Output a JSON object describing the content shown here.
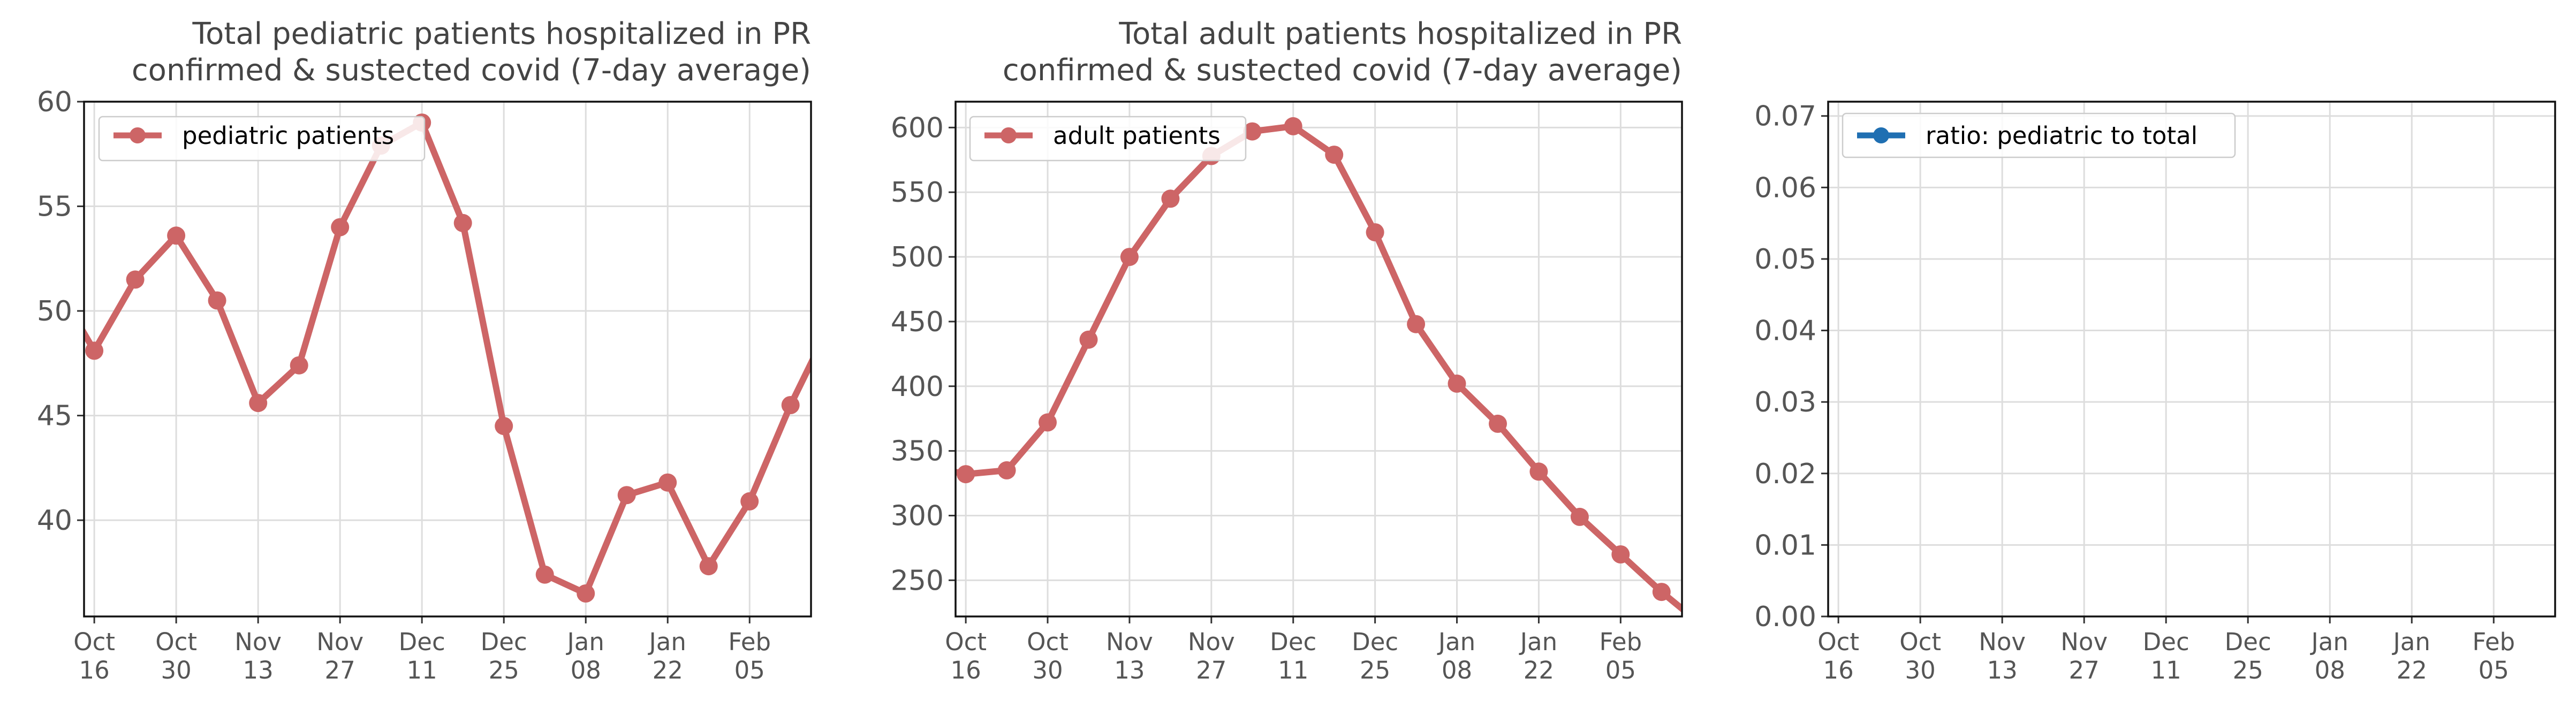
{
  "chart_data": [
    {
      "type": "line",
      "title": [
        "Total pediatric patients hospitalized in PR",
        "confirmed & sustected covid (7-day average)"
      ],
      "xlabel": "",
      "ylabel": "",
      "x_ticks": [
        [
          "Oct",
          "16"
        ],
        [
          "Oct",
          "30"
        ],
        [
          "Nov",
          "13"
        ],
        [
          "Nov",
          "27"
        ],
        [
          "Dec",
          "11"
        ],
        [
          "Dec",
          "25"
        ],
        [
          "Jan",
          "08"
        ],
        [
          "Jan",
          "22"
        ],
        [
          "Feb",
          "05"
        ]
      ],
      "x": [
        -0.3,
        0,
        1,
        2,
        3,
        4,
        5,
        6,
        7,
        8,
        9,
        10,
        11,
        12,
        13,
        14,
        15,
        16,
        17,
        18
      ],
      "markers_from_index": 1,
      "xlim": [
        -0.25,
        17.5
      ],
      "ylim": [
        35.4,
        60
      ],
      "yticks": [
        40,
        45,
        50,
        55,
        60
      ],
      "ytick_decimals": 0,
      "grid": true,
      "legend_position": "top-left",
      "series": [
        {
          "name": "pediatric patients",
          "color": "#cd6566",
          "values": [
            49.1,
            48.1,
            51.5,
            53.6,
            50.5,
            45.6,
            47.4,
            54.0,
            57.9,
            59.0,
            54.2,
            44.5,
            37.4,
            36.5,
            41.2,
            41.8,
            37.8,
            40.9,
            45.5,
            49.5
          ]
        }
      ]
    },
    {
      "type": "line",
      "title": [
        "Total adult patients hospitalized in PR",
        "confirmed & sustected covid (7-day average)"
      ],
      "xlabel": "",
      "ylabel": "",
      "x_ticks": [
        [
          "Oct",
          "16"
        ],
        [
          "Oct",
          "30"
        ],
        [
          "Nov",
          "13"
        ],
        [
          "Nov",
          "27"
        ],
        [
          "Dec",
          "11"
        ],
        [
          "Dec",
          "25"
        ],
        [
          "Jan",
          "08"
        ],
        [
          "Jan",
          "22"
        ],
        [
          "Feb",
          "05"
        ]
      ],
      "x": [
        -0.3,
        0,
        1,
        2,
        3,
        4,
        5,
        6,
        7,
        8,
        9,
        10,
        11,
        12,
        13,
        14,
        15,
        16,
        17,
        18
      ],
      "markers_from_index": 1,
      "xlim": [
        -0.25,
        17.5
      ],
      "ylim": [
        222,
        620
      ],
      "yticks": [
        250,
        300,
        350,
        400,
        450,
        500,
        550,
        600
      ],
      "ytick_decimals": 0,
      "grid": true,
      "legend_position": "top-left",
      "series": [
        {
          "name": "adult patients",
          "color": "#cd6566",
          "values": [
            334,
            332,
            335,
            372,
            436,
            500,
            545,
            578,
            597,
            601,
            579,
            519,
            448,
            402,
            371,
            334,
            299,
            270,
            241,
            215
          ]
        }
      ]
    },
    {
      "type": "line",
      "title": [],
      "xlabel": "",
      "ylabel": "",
      "x_ticks": [
        [
          "Oct",
          "16"
        ],
        [
          "Oct",
          "30"
        ],
        [
          "Nov",
          "13"
        ],
        [
          "Nov",
          "27"
        ],
        [
          "Dec",
          "11"
        ],
        [
          "Dec",
          "25"
        ],
        [
          "Jan",
          "08"
        ],
        [
          "Jan",
          "22"
        ],
        [
          "Feb",
          "05"
        ]
      ],
      "x": [],
      "markers_from_index": 0,
      "xlim": [
        -0.25,
        17.5
      ],
      "ylim": [
        0,
        0.072
      ],
      "yticks": [
        0,
        0.01,
        0.02,
        0.03,
        0.04,
        0.05,
        0.06,
        0.07
      ],
      "ytick_decimals": 2,
      "grid": true,
      "legend_position": "top-left",
      "series": [
        {
          "name": "ratio: pediatric to total",
          "color": "#1f6fb2",
          "values": []
        }
      ]
    }
  ]
}
